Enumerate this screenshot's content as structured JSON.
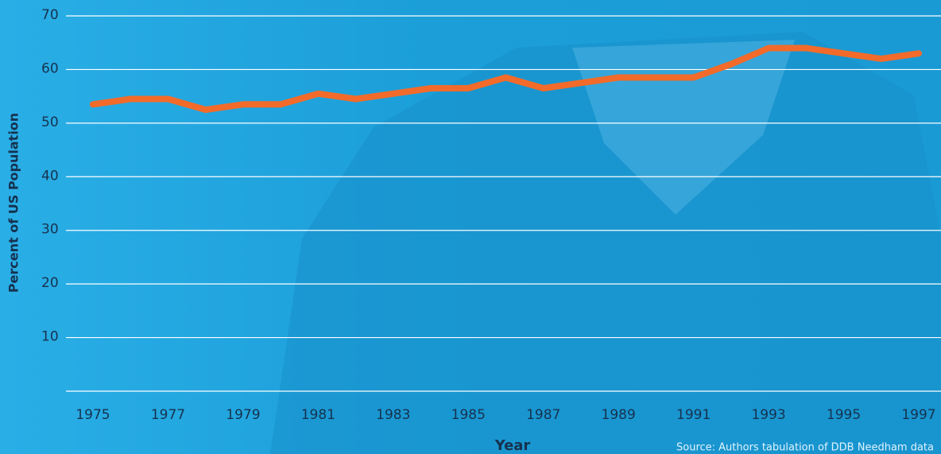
{
  "chart_data": {
    "type": "line",
    "x": [
      1975,
      1976,
      1977,
      1978,
      1979,
      1980,
      1981,
      1982,
      1983,
      1984,
      1985,
      1986,
      1987,
      1988,
      1989,
      1990,
      1991,
      1992,
      1993,
      1994,
      1995,
      1996,
      1997
    ],
    "values": [
      53.5,
      54.5,
      54.5,
      52.5,
      53.5,
      53.5,
      55.5,
      54.5,
      55.5,
      56.5,
      56.5,
      58.5,
      56.5,
      57.5,
      58.5,
      58.5,
      58.5,
      61,
      64,
      64,
      63,
      62,
      63
    ],
    "color": "#f26b2a",
    "xlim": [
      1975,
      1997
    ],
    "xticks": [
      1975,
      1977,
      1979,
      1981,
      1983,
      1985,
      1987,
      1989,
      1991,
      1993,
      1995,
      1997
    ],
    "ylim": [
      0,
      70
    ],
    "yticks": [
      10,
      20,
      30,
      40,
      50,
      60,
      70
    ],
    "grid": true,
    "xlabel": "Year",
    "ylabel": "Percent of US Population",
    "source": "Source: Authors tabulation of DDB Needham data"
  }
}
